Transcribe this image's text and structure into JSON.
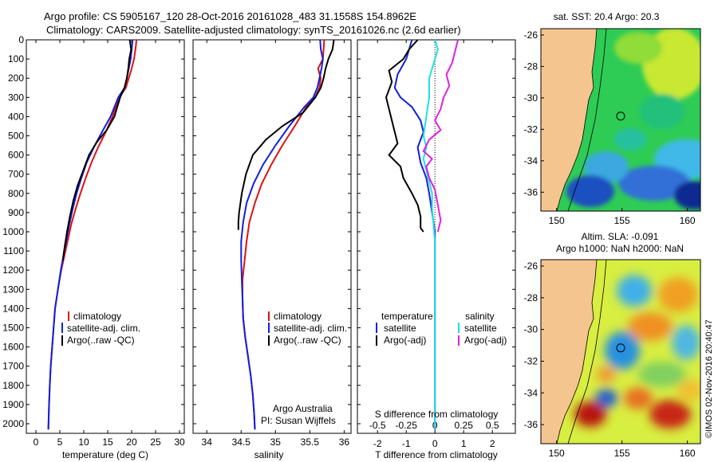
{
  "header": {
    "line1": "Argo profile: CS 5905167_120 28-Oct-2016 20161028_483 31.1558S 154.8962E",
    "line2": "Climatology: CARS2009. Satellite-adjusted climatology: synTS_20161026.nc (2.6d earlier)"
  },
  "colors": {
    "climatology": "#e01010",
    "satellite": "#1020e0",
    "argo": "#000000",
    "s_satellite": "#20e0e0",
    "s_argo": "#e020e0",
    "land": "#f5c590"
  },
  "chart_data": [
    {
      "type": "line",
      "panel": "temperature",
      "xlabel": "temperature (deg C)",
      "ylabel": "",
      "xlim": [
        -2,
        31
      ],
      "ylim": [
        0,
        2050
      ],
      "xticks": [
        0,
        5,
        10,
        15,
        20,
        25,
        30
      ],
      "yticks": [
        0,
        100,
        200,
        300,
        400,
        500,
        600,
        700,
        800,
        900,
        1000,
        1100,
        1200,
        1300,
        1400,
        1500,
        1600,
        1700,
        1800,
        1900,
        2000
      ],
      "legend": [
        "climatology",
        "satellite-adj. clim.",
        "Argo(..raw -QC)"
      ],
      "series": [
        {
          "name": "climatology",
          "color": "#e01010",
          "x": [
            21,
            20.9,
            20.5,
            20.0,
            19.4,
            18.8,
            17.4,
            16.0,
            14.6,
            13.0,
            11.6,
            10.4,
            9.3,
            8.3,
            7.4,
            6.7,
            6.0,
            5.3,
            4.6,
            4.0,
            3.7,
            3.4,
            3.1,
            2.9,
            2.75,
            2.6
          ],
          "y": [
            0,
            30,
            100,
            150,
            200,
            250,
            300,
            400,
            480,
            560,
            640,
            720,
            800,
            880,
            960,
            1040,
            1120,
            1200,
            1300,
            1400,
            1500,
            1600,
            1700,
            1800,
            1900,
            2030
          ]
        },
        {
          "name": "satellite",
          "color": "#1020e0",
          "x": [
            20.2,
            20.1,
            19.8,
            19.4,
            19.0,
            18.5,
            17.2,
            15.6,
            13.8,
            12.1,
            10.6,
            9.5,
            8.5,
            7.7,
            7.0,
            6.4,
            5.8,
            5.2,
            4.6,
            4.0,
            3.7,
            3.4,
            3.1,
            2.9,
            2.75,
            2.6
          ],
          "y": [
            0,
            30,
            100,
            150,
            200,
            250,
            300,
            400,
            480,
            560,
            640,
            720,
            800,
            880,
            960,
            1040,
            1120,
            1200,
            1300,
            1400,
            1500,
            1600,
            1700,
            1800,
            1900,
            2030
          ]
        },
        {
          "name": "argo",
          "color": "#000000",
          "x": [
            19.6,
            19.9,
            19.5,
            19.3,
            19.0,
            18.5,
            17.6,
            16.4,
            14.8,
            12.8,
            11.1,
            9.9,
            8.7,
            7.8,
            7.1,
            6.5,
            6.0,
            5.6
          ],
          "y": [
            0,
            50,
            100,
            150,
            200,
            250,
            300,
            400,
            470,
            530,
            600,
            680,
            760,
            840,
            920,
            1000,
            1080,
            1150
          ]
        }
      ]
    },
    {
      "type": "line",
      "panel": "salinity",
      "xlabel": "salinity",
      "xlim": [
        33.8,
        36.1
      ],
      "ylim": [
        0,
        2050
      ],
      "xticks": [
        34,
        34.5,
        35,
        35.5,
        36
      ],
      "legend": [
        "climatology",
        "satellite-adj. clim.",
        "Argo(..raw -QC)"
      ],
      "annotation": [
        "Argo Australia",
        "PI: Susan Wijffels"
      ],
      "series": [
        {
          "name": "climatology",
          "color": "#e01010",
          "x": [
            35.71,
            35.7,
            35.69,
            35.62,
            35.66,
            35.64,
            35.58,
            35.45,
            35.28,
            35.1,
            34.94,
            34.8,
            34.7,
            34.62,
            34.58,
            34.55,
            34.52,
            34.52,
            34.53,
            34.56,
            34.6,
            34.64,
            34.67,
            34.69,
            34.7
          ],
          "y": [
            0,
            50,
            100,
            150,
            200,
            250,
            300,
            350,
            450,
            550,
            650,
            750,
            850,
            950,
            1050,
            1150,
            1250,
            1350,
            1450,
            1550,
            1650,
            1750,
            1850,
            1950,
            2030
          ]
        },
        {
          "name": "satellite",
          "color": "#1020e0",
          "x": [
            35.65,
            35.66,
            35.69,
            35.67,
            35.64,
            35.61,
            35.55,
            35.42,
            35.2,
            35.0,
            34.82,
            34.68,
            34.58,
            34.53,
            34.5,
            34.5,
            34.51,
            34.52,
            34.53,
            34.56,
            34.6,
            34.64,
            34.67,
            34.69,
            34.7
          ],
          "y": [
            0,
            50,
            100,
            150,
            200,
            250,
            300,
            350,
            450,
            550,
            650,
            750,
            850,
            950,
            1050,
            1150,
            1250,
            1350,
            1450,
            1550,
            1650,
            1750,
            1850,
            1950,
            2030
          ]
        },
        {
          "name": "argo",
          "color": "#000000",
          "x": [
            35.85,
            35.83,
            35.77,
            35.73,
            35.7,
            35.66,
            35.58,
            35.4,
            35.1,
            34.86,
            34.67,
            34.57,
            34.51,
            34.47,
            34.46,
            34.46
          ],
          "y": [
            0,
            50,
            100,
            150,
            200,
            250,
            300,
            380,
            450,
            520,
            600,
            700,
            800,
            900,
            950,
            990
          ]
        }
      ]
    },
    {
      "type": "line",
      "panel": "difference",
      "xlabel": "T difference from climatology",
      "xlabel_top": "S difference from climatology",
      "xlim": [
        -2.7,
        2.8
      ],
      "ylim": [
        0,
        2050
      ],
      "xticks": [
        -2,
        -1,
        0,
        1,
        2
      ],
      "xticks_s": [
        "-0.5",
        "-0.25",
        "0",
        "0.25",
        "0.5"
      ],
      "legend": {
        "temperature": "temperature",
        "salinity": "salinity",
        "t_satellite": "satellite",
        "t_argo": "Argo(-adj)",
        "s_satellite": "satellite",
        "s_argo": "Argo(-adj)"
      },
      "series": [
        {
          "name": "T satellite",
          "color": "#1020e0",
          "x": [
            -0.8,
            -0.9,
            -1.0,
            -1.3,
            -1.4,
            -1.2,
            -0.8,
            -0.5,
            -0.4,
            -0.6,
            -0.5,
            -0.3,
            -0.2,
            -0.1,
            0,
            0,
            0,
            0,
            0,
            0
          ],
          "y": [
            0,
            50,
            100,
            180,
            250,
            300,
            350,
            420,
            480,
            560,
            640,
            720,
            800,
            900,
            1000,
            1100,
            1300,
            1500,
            1800,
            2030
          ]
        },
        {
          "name": "T argo",
          "color": "#000000",
          "x": [
            -0.6,
            -0.9,
            -1.1,
            -1.6,
            -1.5,
            -1.7,
            -1.6,
            -1.5,
            -1.4,
            -1.3,
            -1.6,
            -1.2,
            -1.1,
            -0.8,
            -0.6,
            -0.5,
            -0.5,
            -0.4
          ],
          "y": [
            0,
            50,
            100,
            160,
            220,
            300,
            360,
            420,
            480,
            540,
            600,
            660,
            720,
            800,
            860,
            920,
            980,
            1000
          ]
        },
        {
          "name": "S satellite",
          "color": "#20e0e0",
          "x": [
            0,
            0.1,
            0,
            -0.2,
            -0.2,
            -0.3,
            -0.4,
            -0.3,
            -0.4,
            -0.3,
            -0.2,
            -0.1,
            -0.1,
            -0.05,
            0,
            0,
            0,
            0,
            0
          ],
          "y": [
            0,
            50,
            100,
            200,
            300,
            400,
            500,
            560,
            620,
            680,
            740,
            800,
            880,
            960,
            1050,
            1200,
            1500,
            1800,
            2030
          ]
        },
        {
          "name": "S argo",
          "color": "#e020e0",
          "x": [
            0.8,
            0.7,
            0.6,
            0.4,
            0.5,
            0.3,
            0.2,
            0,
            0.2,
            -0.2,
            -0.4,
            -0.1,
            -0.3,
            -0.2,
            0,
            0.1,
            0.2,
            0.1
          ],
          "y": [
            0,
            60,
            120,
            180,
            240,
            300,
            360,
            420,
            470,
            520,
            580,
            620,
            660,
            720,
            780,
            860,
            940,
            1000
          ]
        }
      ]
    },
    {
      "type": "heatmap",
      "panel": "sst-map",
      "title": "sat. SST: 20.4 Argo: 20.3",
      "xlim": [
        148.8,
        161
      ],
      "ylim": [
        -37.2,
        -25.6
      ],
      "xticks": [
        150,
        155,
        160
      ],
      "yticks": [
        -26,
        -28,
        -30,
        -32,
        -34,
        -36
      ],
      "marker": {
        "lon": 154.9,
        "lat": -31.16
      }
    },
    {
      "type": "heatmap",
      "panel": "sla-map",
      "title": [
        "Altim. SLA: -0.091",
        "Argo h1000: NaN h2000: NaN"
      ],
      "xlim": [
        148.8,
        161
      ],
      "ylim": [
        -37.2,
        -25.6
      ],
      "xticks": [
        150,
        155,
        160
      ],
      "yticks": [
        -26,
        -28,
        -30,
        -32,
        -34,
        -36
      ],
      "marker": {
        "lon": 154.9,
        "lat": -31.16
      }
    }
  ],
  "footer": {
    "watermark": "©IMOS 02-Nov-2016 20:40:47"
  }
}
